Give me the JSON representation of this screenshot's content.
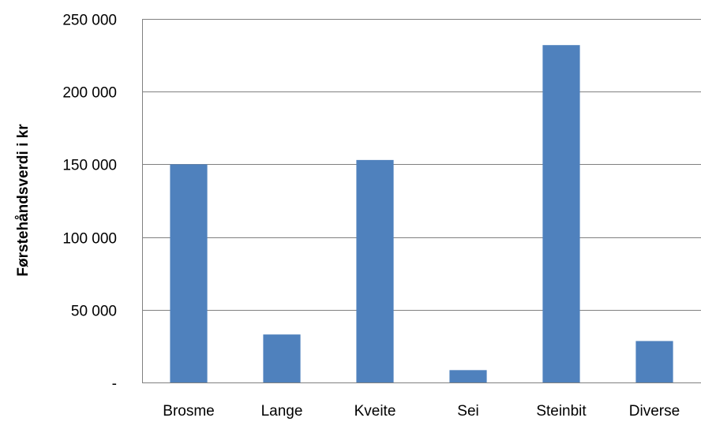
{
  "chart_data": {
    "type": "bar",
    "title": "",
    "xlabel": "",
    "ylabel": "Førstehåndsverdi i kr",
    "categories": [
      "Brosme",
      "Lange",
      "Kveite",
      "Sei",
      "Steinbit",
      "Diverse"
    ],
    "values": [
      150000,
      33000,
      153000,
      8500,
      232000,
      28500
    ],
    "ylim": [
      0,
      250000
    ],
    "yticks": [
      0,
      50000,
      100000,
      150000,
      200000,
      250000
    ],
    "ytick_labels": [
      "-",
      "50 000",
      "100 000",
      "150 000",
      "200 000",
      "250 000"
    ],
    "grid": true,
    "legend": "none",
    "bar_color": "#4F81BD",
    "grid_color": "#808080"
  }
}
